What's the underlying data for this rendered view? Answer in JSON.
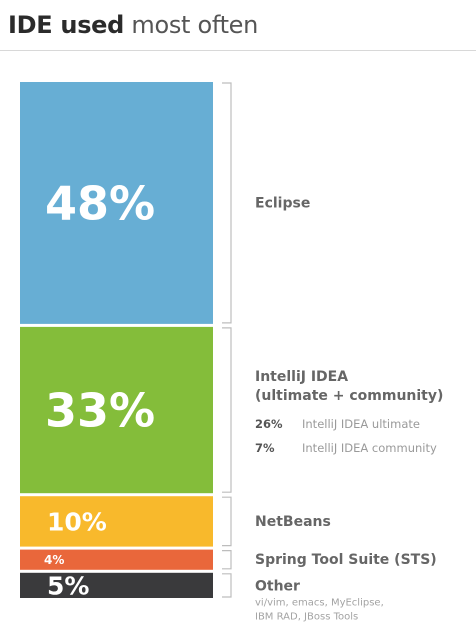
{
  "title": {
    "bold": "IDE used",
    "rest": " most often"
  },
  "chart_data": {
    "type": "bar",
    "stacked": true,
    "orientation": "vertical",
    "unit": "%",
    "segments": [
      {
        "label": "Eclipse",
        "value": 48,
        "value_label": "48%",
        "color": "#67aed4",
        "label_lines": [
          "Eclipse"
        ]
      },
      {
        "label": "IntelliJ IDEA (ultimate + community)",
        "value": 33,
        "value_label": "33%",
        "color": "#84bd3a",
        "label_lines": [
          "IntelliJ IDEA",
          "(ultimate + community)"
        ],
        "breakdown": [
          {
            "value": 26,
            "value_label": "26%",
            "label": "IntelliJ IDEA ultimate"
          },
          {
            "value": 7,
            "value_label": "7%",
            "label": "IntelliJ IDEA community"
          }
        ]
      },
      {
        "label": "NetBeans",
        "value": 10,
        "value_label": "10%",
        "color": "#f8b92c",
        "label_lines": [
          "NetBeans"
        ]
      },
      {
        "label": "Spring Tool Suite (STS)",
        "value": 4,
        "value_label": "4%",
        "color": "#e9673b",
        "label_lines": [
          "Spring Tool Suite (STS)"
        ]
      },
      {
        "label": "Other",
        "value": 5,
        "value_label": "5%",
        "color": "#3a3a3c",
        "label_lines": [
          "Other"
        ],
        "note_lines": [
          "vi/vim, emacs, MyEclipse,",
          "IBM RAD, JBoss Tools"
        ]
      }
    ]
  }
}
